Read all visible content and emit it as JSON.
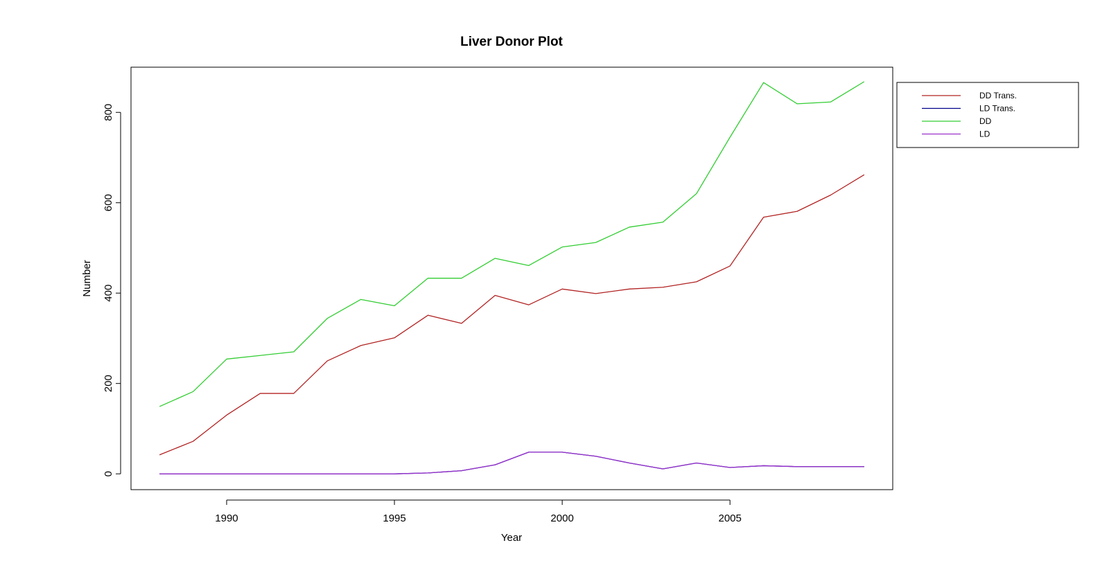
{
  "chart_data": {
    "type": "line",
    "title": "Liver Donor Plot",
    "xlabel": "Year",
    "ylabel": "Number",
    "xlim": [
      1987.15,
      2009.85
    ],
    "ylim": [
      -35,
      900
    ],
    "x_ticks": [
      1990,
      1995,
      2000,
      2005
    ],
    "y_ticks": [
      0,
      200,
      400,
      600,
      800
    ],
    "grid": false,
    "legend_position": "outside-top-right",
    "x": [
      1988,
      1989,
      1990,
      1991,
      1992,
      1993,
      1994,
      1995,
      1996,
      1997,
      1998,
      1999,
      2000,
      2001,
      2002,
      2003,
      2004,
      2005,
      2006,
      2007,
      2008,
      2009
    ],
    "series": [
      {
        "name": "DD Trans.",
        "color": "#b22222",
        "values": [
          42,
          72,
          130,
          178,
          178,
          250,
          284,
          301,
          351,
          333,
          395,
          374,
          409,
          399,
          409,
          413,
          425,
          460,
          568,
          581,
          617,
          662
        ]
      },
      {
        "name": "LD Trans.",
        "color": "#00008b",
        "values": [
          0,
          0,
          0,
          0,
          0,
          0,
          0,
          0,
          2,
          7,
          20,
          48,
          48,
          39,
          24,
          11,
          24,
          14,
          18,
          16,
          16,
          16
        ]
      },
      {
        "name": "DD",
        "color": "#32cd32",
        "values": [
          149,
          182,
          254,
          262,
          270,
          344,
          386,
          372,
          433,
          433,
          477,
          461,
          502,
          512,
          546,
          557,
          620,
          745,
          866,
          819,
          823,
          868
        ]
      },
      {
        "name": "LD",
        "color": "#9932cc",
        "values": [
          0,
          0,
          0,
          0,
          0,
          0,
          0,
          0,
          2,
          7,
          20,
          48,
          48,
          39,
          24,
          11,
          24,
          14,
          18,
          16,
          16,
          16
        ]
      }
    ]
  }
}
